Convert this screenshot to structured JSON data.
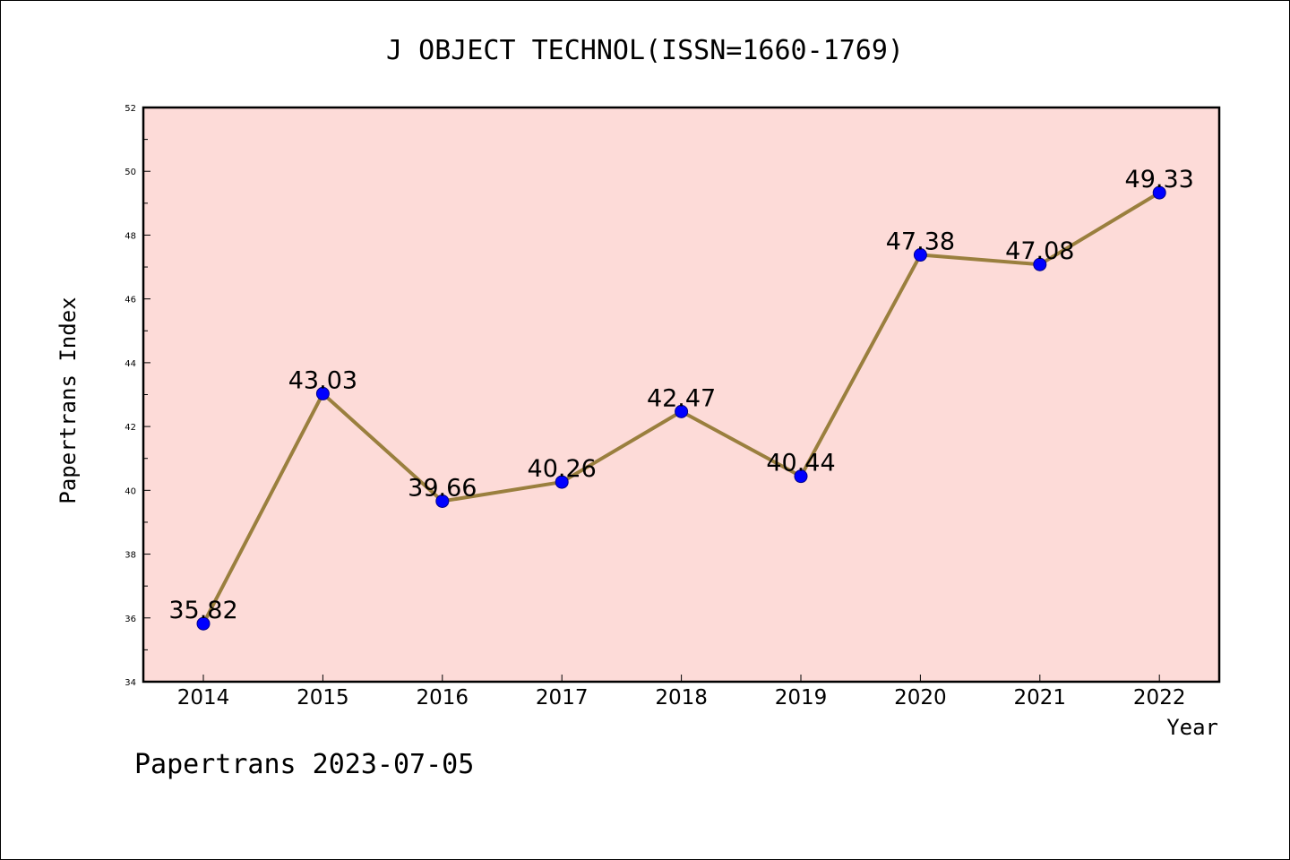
{
  "chart_data": {
    "type": "line",
    "title": "J OBJECT TECHNOL(ISSN=1660-1769)",
    "xlabel": "Year",
    "ylabel": "Papertrans Index",
    "categories": [
      "2014",
      "2015",
      "2016",
      "2017",
      "2018",
      "2019",
      "2020",
      "2021",
      "2022"
    ],
    "values": [
      35.82,
      43.03,
      39.66,
      40.26,
      42.47,
      40.44,
      47.38,
      47.08,
      49.33
    ],
    "data_labels": [
      "35.82",
      "43.03",
      "39.66",
      "40.26",
      "42.47",
      "40.44",
      "47.38",
      "47.08",
      "49.33"
    ],
    "ylim": [
      34,
      52
    ],
    "yticks": [
      34,
      36,
      38,
      40,
      42,
      44,
      46,
      48,
      50,
      52
    ],
    "grid": false,
    "colors": {
      "plot_background": "#fddbd8",
      "line": "#9a7f3e",
      "marker": "#0000ff"
    }
  },
  "footer": "Papertrans 2023-07-05"
}
